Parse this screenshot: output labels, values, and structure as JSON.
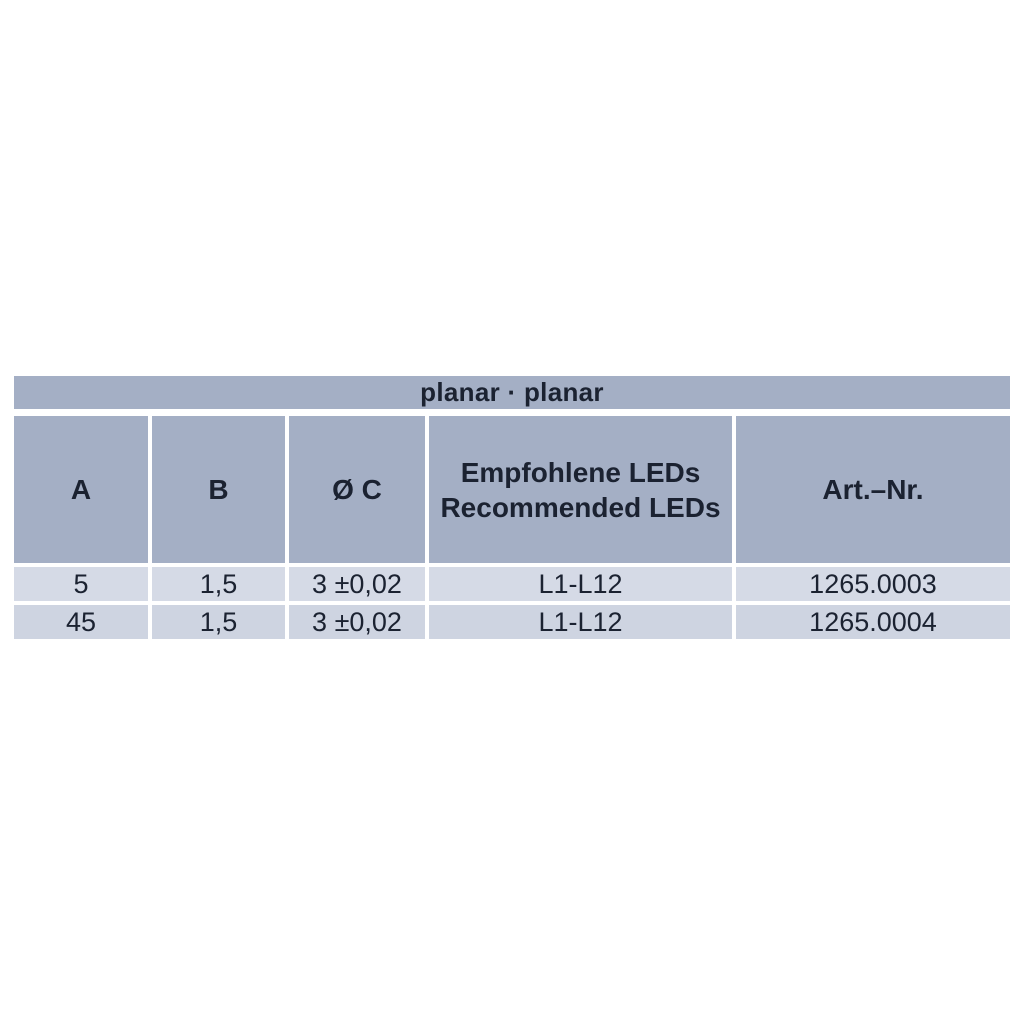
{
  "table": {
    "title": "planar · planar",
    "headers": {
      "col_a": "A",
      "col_b": "B",
      "col_c": "Ø C",
      "col_leds_line1": "Empfohlene LEDs",
      "col_leds_line2": "Recommended LEDs",
      "col_artnr": "Art.–Nr."
    },
    "rows": [
      {
        "a": "5",
        "b": "1,5",
        "c": "3 ±0,02",
        "leds": "L1-L12",
        "artnr": "1265.0003"
      },
      {
        "a": "45",
        "b": "1,5",
        "c": "3 ±0,02",
        "leds": "L1-L12",
        "artnr": "1265.0004"
      }
    ]
  },
  "colors": {
    "page_bg": "#ffffff",
    "header_bg": "#a4afc5",
    "row_odd_bg": "#d5dae6",
    "row_even_bg": "#ced4e1",
    "text": "#1b2231",
    "separator": "#ffffff"
  }
}
